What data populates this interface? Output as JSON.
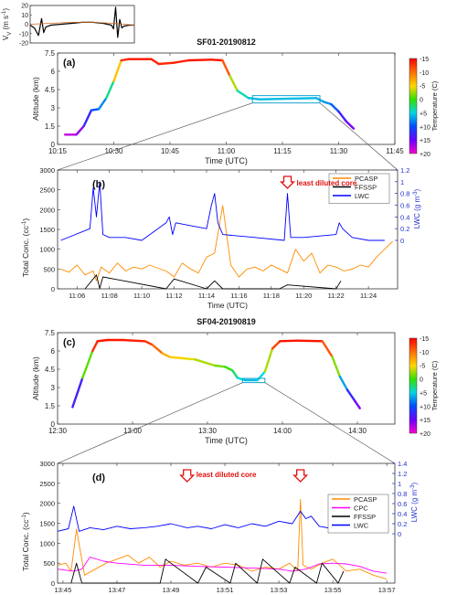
{
  "chart_data": [
    {
      "id": "vv-inset",
      "type": "line",
      "ylabel": "V",
      "ylabel_sub": "V",
      "ylabel_unit": "(m s",
      "ylabel_unit_sup": "-1",
      "ylabel_unit_close": ")",
      "ylim": [
        -20,
        20
      ],
      "yticks": [
        -20,
        -10,
        0,
        10,
        20
      ],
      "series": [
        {
          "color": "#000000",
          "x": [
            0,
            0.04,
            0.08,
            0.11,
            0.13,
            0.15,
            0.2,
            0.3,
            0.4,
            0.5,
            0.6,
            0.7,
            0.78,
            0.8,
            0.82,
            0.84,
            0.86,
            0.88,
            0.9,
            0.95,
            1.0
          ],
          "y": [
            -1,
            -4,
            -12,
            6,
            -9,
            -3,
            -1,
            0,
            1,
            2,
            2,
            1,
            -1,
            -5,
            18,
            -14,
            5,
            -4,
            -2,
            -1,
            -1
          ]
        },
        {
          "color": "#d2691e",
          "x": [
            0,
            0.2,
            0.4,
            0.6,
            0.8,
            1.0
          ],
          "y": [
            0,
            1,
            2,
            2,
            1,
            -1
          ]
        }
      ]
    },
    {
      "id": "panel-a",
      "type": "line",
      "title": "SF01-20190812",
      "panel_label": "(a)",
      "xlabel": "Time (UTC)",
      "ylabel": "Altitude (km)",
      "xlim": [
        615,
        705
      ],
      "ylim": [
        0,
        7.5
      ],
      "xticks": [
        615,
        630,
        645,
        660,
        675,
        690,
        705
      ],
      "xtick_labels": [
        "10:15",
        "10:30",
        "10:45",
        "11:00",
        "11:15",
        "11:30",
        "11:45"
      ],
      "yticks": [
        0,
        1.5,
        3,
        4.5,
        6,
        7.5
      ],
      "ytick_labels": [
        "0",
        "1.5",
        "3",
        "4.5",
        "6",
        "7.5"
      ],
      "x": [
        617,
        620,
        622,
        624,
        626,
        628,
        630,
        632,
        634,
        640,
        642,
        646,
        650,
        656,
        659,
        661,
        663,
        666,
        669,
        684,
        686,
        688,
        690,
        692,
        694
      ],
      "y": [
        0.8,
        0.8,
        1.5,
        2.8,
        2.9,
        3.8,
        5.2,
        6.9,
        7.0,
        7.0,
        6.6,
        6.7,
        6.9,
        6.95,
        6.9,
        5.6,
        4.4,
        3.8,
        3.7,
        3.8,
        3.5,
        3.3,
        2.7,
        1.9,
        1.3
      ],
      "temperature": [
        18,
        18,
        15,
        10,
        10,
        6,
        0,
        -12,
        -14,
        -14,
        -13,
        -13,
        -14,
        -14,
        -14,
        -8,
        2,
        6,
        6,
        6,
        7,
        8,
        11,
        15,
        16
      ],
      "box": {
        "x0": 667,
        "x1": 685,
        "y0": 3.4,
        "y1": 4.0
      }
    },
    {
      "id": "panel-b",
      "type": "line",
      "panel_label": "(b)",
      "xlabel": "Time (UTC)",
      "ylabel": "Total Conc. (cc",
      "ylabel_sup": "-1",
      "ylabel_close": ")",
      "y2label": "LWC (g m",
      "y2label_sup": "-3",
      "y2label_close": ")",
      "xlim": [
        664.8,
        685.8
      ],
      "ylim": [
        0,
        3000
      ],
      "y2lim": [
        0,
        1.2
      ],
      "xticks": [
        666,
        668,
        670,
        672,
        674,
        676,
        678,
        680,
        682,
        684
      ],
      "xtick_labels": [
        "11:06",
        "11:08",
        "11:10",
        "11:12",
        "11:14",
        "11:16",
        "11:18",
        "11:20",
        "11:22",
        "11:24"
      ],
      "yticks": [
        0,
        500,
        1000,
        1500,
        2000,
        2500,
        3000
      ],
      "y2ticks": [
        0,
        0.2,
        0.4,
        0.6,
        0.8,
        1,
        1.2
      ],
      "y2tick_labels": [
        "0",
        "0.2",
        "0.4",
        "0.6",
        "0.8",
        "1",
        "1.2"
      ],
      "legend": [
        "PCASP",
        "FFSSP",
        "LWC"
      ],
      "legend_colors": [
        "#ff8c00",
        "#000000",
        "#0000ff"
      ],
      "annotation": "least diluted core",
      "annotation_x": 679,
      "series": [
        {
          "name": "PCASP",
          "color": "#ff8c00",
          "x": [
            665,
            665.5,
            666,
            666.5,
            667,
            667.2,
            667.5,
            668,
            668.5,
            669,
            669.5,
            670,
            670.5,
            671,
            671.5,
            672,
            672.5,
            673,
            673.5,
            674,
            674.5,
            675,
            675.5,
            676,
            676.5,
            677,
            677.5,
            678,
            678.5,
            679,
            679.5,
            680,
            680.5,
            681,
            681.5,
            682,
            682.5,
            683,
            683.5,
            684,
            684.5,
            685,
            685.5
          ],
          "y": [
            500,
            420,
            600,
            350,
            450,
            200,
            550,
            400,
            650,
            450,
            550,
            500,
            600,
            520,
            450,
            300,
            650,
            500,
            400,
            800,
            900,
            2100,
            600,
            300,
            500,
            550,
            450,
            600,
            500,
            400,
            1000,
            700,
            900,
            400,
            600,
            550,
            450,
            500,
            600,
            550,
            800,
            1000,
            1200
          ]
        },
        {
          "name": "FFSSP",
          "color": "#000000",
          "x": [
            666.5,
            667.2,
            667.4,
            667.6,
            671.5,
            672,
            674,
            674.5,
            675,
            678.5,
            679,
            682,
            682.3
          ],
          "y": [
            0,
            350,
            10,
            300,
            0,
            250,
            0,
            200,
            0,
            0,
            100,
            0,
            200
          ]
        },
        {
          "name": "LWC",
          "color": "#0000ff",
          "axis": "y2",
          "x": [
            665,
            666.8,
            667.0,
            667.2,
            667.4,
            667.6,
            668,
            669,
            670,
            671.5,
            671.7,
            671.9,
            672.1,
            674,
            674.3,
            674.5,
            674.7,
            675,
            677,
            678.8,
            679.0,
            679.2,
            680,
            682,
            682.2,
            682.4,
            683,
            684,
            685
          ],
          "y": [
            0,
            0.2,
            0.9,
            0.4,
            1.0,
            0.1,
            0.05,
            0.05,
            0,
            0.3,
            0.4,
            0.1,
            0.3,
            0.2,
            0.6,
            0.8,
            0.3,
            0.1,
            0.05,
            0,
            0.8,
            0.05,
            0.05,
            0.1,
            0.3,
            0.2,
            0.05,
            0,
            0
          ]
        }
      ]
    },
    {
      "id": "panel-c",
      "type": "line",
      "title": "SF04-20190819",
      "panel_label": "(c)",
      "xlabel": "Time (UTC)",
      "ylabel": "Altitude (km)",
      "xlim": [
        750,
        885
      ],
      "ylim": [
        0,
        7.5
      ],
      "xticks": [
        750,
        780,
        810,
        840,
        870
      ],
      "xtick_labels": [
        "12:30",
        "13:00",
        "13:30",
        "14:00",
        "14:30"
      ],
      "yticks": [
        0,
        1.5,
        3,
        4.5,
        6,
        7.5
      ],
      "ytick_labels": [
        "0",
        "1.5",
        "3",
        "4.5",
        "6",
        "7.5"
      ],
      "x": [
        756,
        760,
        764,
        766,
        770,
        776,
        785,
        788,
        792,
        795,
        800,
        805,
        813,
        817,
        820,
        822,
        825,
        830,
        833,
        836,
        839,
        846,
        856,
        860,
        863,
        866,
        869,
        871
      ],
      "y": [
        1.4,
        3.8,
        6.0,
        6.8,
        6.9,
        6.9,
        6.8,
        6.5,
        5.8,
        5.5,
        5.4,
        5.3,
        4.8,
        4.7,
        4.4,
        3.8,
        3.6,
        3.6,
        4.3,
        6.2,
        6.8,
        6.85,
        6.8,
        5.5,
        3.9,
        2.8,
        1.9,
        1.3
      ],
      "temperature": [
        16,
        10,
        -12,
        -14,
        -14,
        -14,
        -13,
        -12,
        -8,
        -6,
        -5,
        -4,
        -2,
        -1,
        1,
        4,
        6,
        6,
        4,
        -10,
        -14,
        -14,
        -14,
        -8,
        4,
        10,
        15,
        16
      ],
      "box": {
        "x0": 824,
        "x1": 833,
        "y0": 3.4,
        "y1": 3.75
      }
    },
    {
      "id": "panel-d",
      "type": "line",
      "panel_label": "(d)",
      "xlabel": "Time (UTC)",
      "ylabel": "Total Conc. (cc",
      "ylabel_sup": "-1",
      "ylabel_close": ")",
      "y2label": "LWC (g m",
      "y2label_sup": "-3",
      "y2label_close": ")",
      "xlim": [
        824.8,
        837.3
      ],
      "ylim": [
        0,
        3000
      ],
      "y2lim": [
        0,
        1.4
      ],
      "xticks": [
        825,
        827,
        829,
        831,
        833,
        835,
        837
      ],
      "xtick_labels": [
        "13:45",
        "13:47",
        "13:49",
        "13:51",
        "13:53",
        "13:55",
        "13:57"
      ],
      "yticks": [
        0,
        500,
        1000,
        1500,
        2000,
        2500,
        3000
      ],
      "y2ticks": [
        0,
        0.2,
        0.4,
        0.6,
        0.8,
        1,
        1.2,
        1.4
      ],
      "y2tick_labels": [
        "0",
        "0.2",
        "0.4",
        "0.6",
        "0.8",
        "1",
        "1.2",
        "1.4"
      ],
      "legend": [
        "PCASP",
        "CPC",
        "FFSSP",
        "LWC"
      ],
      "legend_colors": [
        "#ff8c00",
        "#ff00ff",
        "#000000",
        "#0000ff"
      ],
      "annotations": [
        {
          "text": "least diluted core",
          "x": 829.6
        },
        {
          "text": "",
          "x": 833.8
        }
      ],
      "series": [
        {
          "name": "PCASP",
          "color": "#ff8c00",
          "x": [
            824.8,
            825.1,
            825.3,
            825.5,
            825.8,
            826.2,
            826.6,
            827,
            827.4,
            827.8,
            828.2,
            828.6,
            829,
            829.5,
            830,
            830.5,
            831,
            831.5,
            832,
            832.5,
            833,
            833.4,
            833.7,
            833.8,
            833.9,
            834.2,
            834.6,
            835,
            835.5,
            836,
            836.5,
            837
          ],
          "y": [
            450,
            500,
            300,
            1350,
            200,
            350,
            500,
            600,
            700,
            500,
            650,
            400,
            550,
            450,
            500,
            400,
            500,
            450,
            300,
            400,
            350,
            500,
            300,
            2100,
            450,
            350,
            500,
            600,
            300,
            350,
            200,
            100
          ]
        },
        {
          "name": "CPC",
          "color": "#ff00ff",
          "x": [
            824.8,
            825.4,
            825.7,
            826,
            826.5,
            827,
            828,
            829,
            830,
            831,
            832,
            833,
            833.5,
            834,
            834.5,
            835,
            835.5,
            836,
            836.5,
            837
          ],
          "y": [
            350,
            300,
            350,
            650,
            550,
            500,
            450,
            450,
            420,
            400,
            380,
            350,
            300,
            350,
            480,
            500,
            480,
            420,
            300,
            250
          ]
        },
        {
          "name": "FFSSP",
          "color": "#000000",
          "x": [
            825.3,
            825.5,
            825.7,
            828.6,
            828.8,
            830,
            830.3,
            831.2,
            831.4,
            832.2,
            832.4,
            833.4,
            833.6,
            834.4,
            834.6,
            835.2,
            835.4
          ],
          "y": [
            0,
            500,
            0,
            0,
            600,
            0,
            400,
            0,
            500,
            0,
            600,
            0,
            400,
            0,
            500,
            0,
            300
          ]
        },
        {
          "name": "LWC",
          "color": "#0000ff",
          "axis": "y2",
          "x": [
            824.8,
            825.2,
            825.4,
            825.6,
            826,
            826.5,
            827,
            827.5,
            828,
            828.5,
            829,
            829.6,
            830,
            830.5,
            831,
            831.5,
            832,
            832.5,
            833,
            833.5,
            833.8,
            834,
            834.2,
            834.5,
            835,
            835.5,
            836,
            836.5,
            837
          ],
          "y": [
            0.05,
            0.1,
            0.55,
            0.05,
            0.12,
            0.08,
            0.15,
            0.1,
            0.12,
            0.15,
            0.2,
            0.12,
            0.15,
            0.1,
            0.18,
            0.12,
            0.2,
            0.15,
            0.25,
            0.2,
            0.45,
            0.3,
            0.35,
            0.15,
            0.1,
            0.12,
            0.08,
            0.05,
            0.05
          ]
        }
      ]
    }
  ],
  "colorbar": {
    "label": "Temperature (C)",
    "ticks": [
      "-15",
      "-10",
      "-5",
      "0",
      "+5",
      "+10",
      "+15",
      "+20"
    ],
    "range": [
      -15,
      20
    ]
  }
}
